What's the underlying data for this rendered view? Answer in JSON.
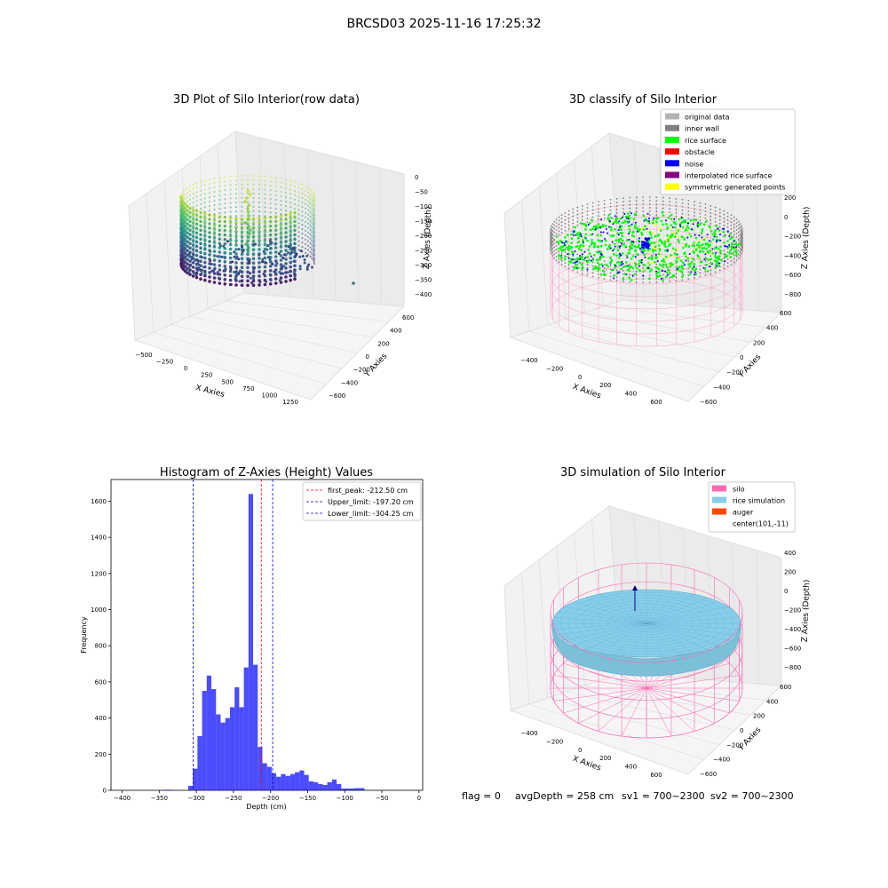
{
  "suptitle": "BRCSD03 2025-11-16 17:25:32",
  "panels": {
    "raw": {
      "title": "3D Plot of Silo Interior(row data)",
      "xlabel": "X Axies",
      "ylabel": "Y Axies",
      "zlabel": "Z Axies (Depth)",
      "xticks": [
        "−500",
        "−250",
        "0",
        "250",
        "500",
        "750",
        "1000",
        "1250"
      ],
      "yticks": [
        "−600",
        "−400",
        "−200",
        "0",
        "200",
        "400",
        "600"
      ],
      "zticks": [
        "0",
        "−50",
        "−100",
        "−150",
        "−200",
        "−250",
        "−300",
        "−350",
        "−400"
      ]
    },
    "classify": {
      "title": "3D classify of Silo Interior",
      "xlabel": "X Axies",
      "ylabel": "Y Axies",
      "zlabel": "Z Axies (Depth)",
      "xticks": [
        "−400",
        "−200",
        "0",
        "200",
        "400",
        "600"
      ],
      "yticks": [
        "−600",
        "−400",
        "−200",
        "0",
        "200",
        "400",
        "600"
      ],
      "zticks": [
        "200",
        "0",
        "−200",
        "−400",
        "−600",
        "−800"
      ],
      "legend": [
        {
          "label": "original data",
          "color": "#b3b3b3"
        },
        {
          "label": "inner wall",
          "color": "#808080"
        },
        {
          "label": "rice surface",
          "color": "#00ff00"
        },
        {
          "label": "obstacle",
          "color": "#ff0000"
        },
        {
          "label": "noise",
          "color": "#0000ff"
        },
        {
          "label": "interpolated rice surface",
          "color": "#800080"
        },
        {
          "label": "symmetric generated points",
          "color": "#ffff00"
        }
      ]
    },
    "simulation": {
      "title": "3D simulation of Silo Interior",
      "xlabel": "X Axies",
      "ylabel": "Y Axies",
      "zlabel": "Z Axies (Depth)",
      "xticks": [
        "−400",
        "−200",
        "0",
        "200",
        "400",
        "600"
      ],
      "yticks": [
        "−600",
        "−400",
        "−200",
        "0",
        "200",
        "400",
        "600"
      ],
      "zticks": [
        "400",
        "200",
        "0",
        "−200",
        "−400",
        "−600",
        "−800"
      ],
      "legend": [
        {
          "label": "silo",
          "color": "#ff69b4"
        },
        {
          "label": "rice simulation",
          "color": "#87ceeb"
        },
        {
          "label": "auger",
          "color": "#ff4500"
        },
        {
          "label": "center(101,-11)",
          "color": ""
        }
      ]
    }
  },
  "footer": {
    "flag": "flag = 0",
    "avg": "avgDepth = 258 cm",
    "sv1": "sv1 = 700~2300",
    "sv2": "sv2 = 700~2300"
  },
  "chart_data": [
    {
      "type": "bar",
      "title": "Histogram of Z-Axies (Height) Values",
      "xlabel": "Depth (cm)",
      "ylabel": "Frequency",
      "xlim": [
        -415,
        5
      ],
      "ylim": [
        0,
        1720
      ],
      "xticks": [
        -400,
        -350,
        -300,
        -250,
        -200,
        -150,
        -100,
        -50,
        0
      ],
      "yticks": [
        0,
        200,
        400,
        600,
        800,
        1000,
        1200,
        1400,
        1600
      ],
      "bar_color": "#0000ff",
      "bin_width": 6.25,
      "bins": [
        [
          -344,
          3
        ],
        [
          -337.75,
          3
        ],
        [
          -311,
          25
        ],
        [
          -304.75,
          120
        ],
        [
          -298.5,
          300
        ],
        [
          -292.25,
          550
        ],
        [
          -286,
          635
        ],
        [
          -279.75,
          560
        ],
        [
          -273.5,
          420
        ],
        [
          -267.25,
          375
        ],
        [
          -261,
          400
        ],
        [
          -254.75,
          460
        ],
        [
          -248.5,
          570
        ],
        [
          -242.25,
          460
        ],
        [
          -236,
          680
        ],
        [
          -229.75,
          1640
        ],
        [
          -223.5,
          695
        ],
        [
          -217.25,
          240
        ],
        [
          -211,
          150
        ],
        [
          -204.75,
          130
        ],
        [
          -198.5,
          95
        ],
        [
          -192.25,
          75
        ],
        [
          -186,
          90
        ],
        [
          -179.75,
          80
        ],
        [
          -173.5,
          90
        ],
        [
          -167.25,
          100
        ],
        [
          -161,
          110
        ],
        [
          -154.75,
          85
        ],
        [
          -148.5,
          50
        ],
        [
          -142.25,
          45
        ],
        [
          -136,
          35
        ],
        [
          -129.75,
          30
        ],
        [
          -123.5,
          45
        ],
        [
          -117.25,
          60
        ],
        [
          -111,
          35
        ],
        [
          -104.75,
          10
        ],
        [
          -98.5,
          10
        ],
        [
          -92.25,
          10
        ],
        [
          -86,
          12
        ],
        [
          -79.75,
          12
        ]
      ],
      "vlines": [
        {
          "label": "first_peak: -212.50 cm",
          "x": -212.5,
          "color": "#ff0000"
        },
        {
          "label": "Upper_limit: -197.20 cm",
          "x": -197.2,
          "color": "#0000ff"
        },
        {
          "label": "Lower_limit: -304.25 cm",
          "x": -304.25,
          "color": "#0000ff"
        }
      ],
      "legend_position": "upper-right"
    }
  ]
}
